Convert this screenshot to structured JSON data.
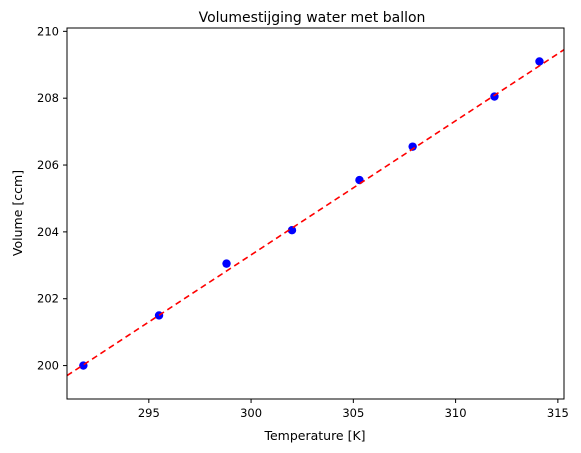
{
  "chart_data": {
    "type": "scatter",
    "title": "Volumestijging water met ballon",
    "xlabel": "Temperature [K]",
    "ylabel": "Volume [ccm]",
    "xlim": [
      291.0,
      315.3
    ],
    "ylim": [
      199.0,
      210.1
    ],
    "xticks": [
      295,
      300,
      305,
      310,
      315
    ],
    "yticks": [
      200,
      202,
      204,
      206,
      208,
      210
    ],
    "grid": false,
    "series": [
      {
        "kind": "points",
        "color": "#0000ff",
        "x": [
          291.8,
          295.5,
          298.8,
          302.0,
          305.3,
          307.9,
          311.9,
          314.1
        ],
        "y": [
          200.0,
          201.5,
          203.05,
          204.05,
          205.55,
          206.55,
          208.05,
          209.1
        ]
      },
      {
        "kind": "fit-line",
        "color": "#ff0000",
        "style": "dashed",
        "x": [
          291.0,
          315.3
        ],
        "y": [
          199.7,
          209.45
        ]
      }
    ]
  }
}
